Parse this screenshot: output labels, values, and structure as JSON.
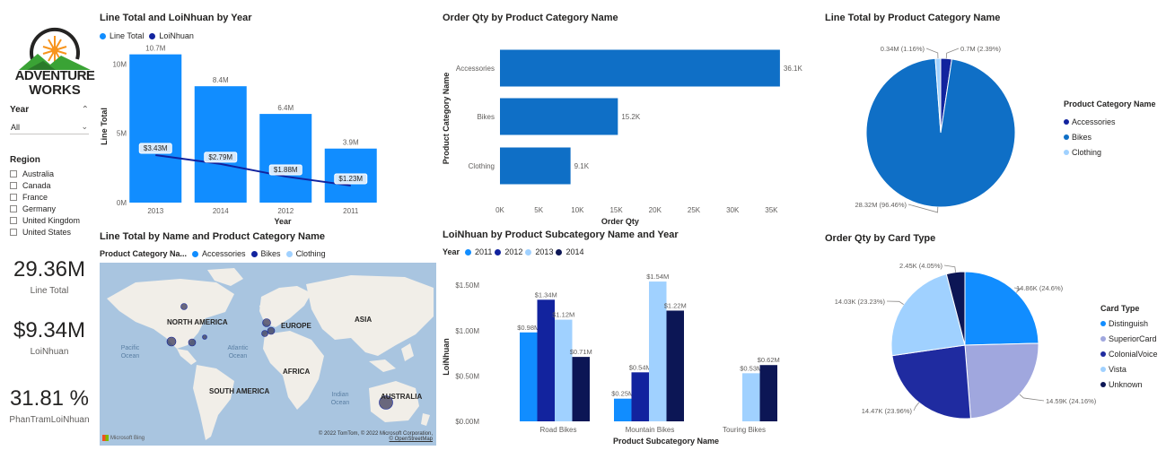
{
  "logo": {
    "line1": "ADVENTURE",
    "line2": "WORKS"
  },
  "slicers": {
    "year": {
      "label": "Year",
      "value": "All"
    },
    "region": {
      "label": "Region",
      "items": [
        "Australia",
        "Canada",
        "France",
        "Germany",
        "United Kingdom",
        "United States"
      ]
    }
  },
  "cards": [
    {
      "value": "29.36M",
      "label": "Line Total"
    },
    {
      "value": "$9.34M",
      "label": "LoiNhuan"
    },
    {
      "value": "31.81 %",
      "label": "PhanTramLoiNhuan"
    }
  ],
  "visuals": {
    "v1": {
      "title": "Line Total and LoiNhuan by Year",
      "legend": [
        "Line Total",
        "LoiNhuan"
      ]
    },
    "v2": {
      "title": "Order Qty by Product Category Name"
    },
    "v3": {
      "title": "Line Total by Product Category Name",
      "legend_title": "Product Category Name",
      "legend": [
        "Accessories",
        "Bikes",
        "Clothing"
      ]
    },
    "v4": {
      "title": "Line Total by Name and Product Category Name",
      "legend_title": "Product Category Na...",
      "legend": [
        "Accessories",
        "Bikes",
        "Clothing"
      ]
    },
    "v5": {
      "title": "LoiNhuan by Product Subcategory Name and Year",
      "legend_title": "Year",
      "legend": [
        "2011",
        "2012",
        "2013",
        "2014"
      ]
    },
    "v6": {
      "title": "Order Qty by Card Type",
      "legend_title": "Card Type",
      "legend": [
        "Distinguish",
        "SuperiorCard",
        "ColonialVoice",
        "Vista",
        "Unknown"
      ]
    }
  },
  "map": {
    "continents": [
      "NORTH AMERICA",
      "EUROPE",
      "ASIA",
      "AFRICA",
      "SOUTH AMERICA",
      "AUSTRALIA"
    ],
    "oceans": [
      "Pacific Ocean",
      "Atlantic Ocean",
      "Indian Ocean"
    ],
    "attribution": "© 2022 TomTom, © 2022 Microsoft Corporation,",
    "attribution2": "© OpenStreetMap",
    "brand": "Microsoft Bing"
  },
  "colors": {
    "blue": "#118dff",
    "navy": "#12239e",
    "mid": "#0f6fc6",
    "pale": "#a0d1ff",
    "lavender": "#a0a7de",
    "dark": "#0c1655",
    "mapwater": "#a9c5e0",
    "mapland": "#f1eee8"
  },
  "chart_data": [
    {
      "type": "bar",
      "title": "Line Total and LoiNhuan by Year",
      "categories": [
        "2013",
        "2014",
        "2012",
        "2011"
      ],
      "series": [
        {
          "name": "Line Total",
          "type": "bar",
          "values": [
            10.7,
            8.4,
            6.4,
            3.9
          ],
          "labels": [
            "10.7M",
            "8.4M",
            "6.4M",
            "3.9M"
          ]
        },
        {
          "name": "LoiNhuan",
          "type": "line",
          "values": [
            3.43,
            2.79,
            1.88,
            1.23
          ],
          "labels": [
            "$3.43M",
            "$2.79M",
            "$1.88M",
            "$1.23M"
          ]
        }
      ],
      "xlabel": "Year",
      "ylabel": "Line Total",
      "yticks": [
        "0M",
        "5M",
        "10M"
      ],
      "ylim": [
        0,
        11
      ]
    },
    {
      "type": "bar",
      "orientation": "horizontal",
      "title": "Order Qty by Product Category Name",
      "categories": [
        "Accessories",
        "Bikes",
        "Clothing"
      ],
      "values": [
        36.1,
        15.2,
        9.1
      ],
      "labels": [
        "36.1K",
        "15.2K",
        "9.1K"
      ],
      "xlabel": "Order Qty",
      "ylabel": "Product Category Name",
      "xticks": [
        "0K",
        "5K",
        "10K",
        "15K",
        "20K",
        "25K",
        "30K",
        "35K"
      ],
      "xlim": [
        0,
        37.5
      ]
    },
    {
      "type": "pie",
      "title": "Line Total by Product Category Name",
      "categories": [
        "Accessories",
        "Bikes",
        "Clothing"
      ],
      "values": [
        0.7,
        28.32,
        0.34
      ],
      "labels": [
        "0.7M (2.39%)",
        "28.32M (96.46%)",
        "0.34M (1.16%)"
      ]
    },
    {
      "type": "scatter",
      "title": "Line Total by Name and Product Category Name",
      "legend_placement": "top"
    },
    {
      "type": "bar",
      "title": "LoiNhuan by Product Subcategory Name and Year",
      "categories": [
        "Road Bikes",
        "Mountain Bikes",
        "Touring Bikes"
      ],
      "series": [
        {
          "name": "2011",
          "values": [
            0.98,
            0.25,
            null
          ],
          "labels": [
            "$0.98M",
            "$0.25M",
            ""
          ]
        },
        {
          "name": "2012",
          "values": [
            1.34,
            0.54,
            null
          ],
          "labels": [
            "$1.34M",
            "$0.54M",
            ""
          ]
        },
        {
          "name": "2013",
          "values": [
            1.12,
            1.54,
            0.53
          ],
          "labels": [
            "$1.12M",
            "$1.54M",
            "$0.53M"
          ]
        },
        {
          "name": "2014",
          "values": [
            0.71,
            1.22,
            0.62
          ],
          "labels": [
            "$0.71M",
            "$1.22M",
            "$0.62M"
          ]
        }
      ],
      "xlabel": "Product Subcategory Name",
      "ylabel": "LoiNhuan",
      "yticks": [
        "$0.00M",
        "$0.50M",
        "$1.00M",
        "$1.50M"
      ],
      "ylim": [
        0,
        1.6
      ]
    },
    {
      "type": "pie",
      "title": "Order Qty by Card Type",
      "categories": [
        "Distinguish",
        "SuperiorCard",
        "ColonialVoice",
        "Vista",
        "Unknown"
      ],
      "values": [
        14.86,
        14.59,
        14.47,
        14.03,
        2.45
      ],
      "labels": [
        "14.86K (24.6%)",
        "14.59K (24.16%)",
        "14.47K (23.96%)",
        "14.03K (23.23%)",
        "2.45K (4.05%)"
      ]
    }
  ]
}
